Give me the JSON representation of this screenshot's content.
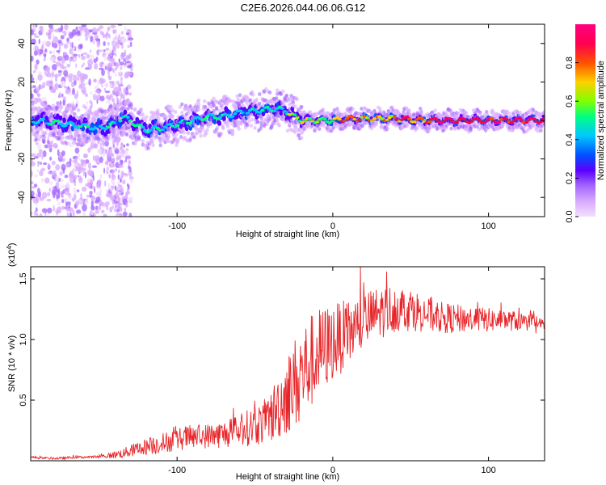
{
  "title": "C2E6.2026.044.06.06.G12",
  "chart_data": [
    {
      "type": "heatmap",
      "name": "spectrogram",
      "xlabel": "Height of straight line (km)",
      "ylabel": "Frequency (Hz)",
      "xlim": [
        -194,
        136
      ],
      "ylim": [
        -50,
        50
      ],
      "xticks": [
        -100,
        0,
        100
      ],
      "xtick_labels": [
        "-100",
        "0",
        "100"
      ],
      "yticks": [
        -40,
        -20,
        0,
        20,
        40
      ],
      "ytick_labels": [
        "-40",
        "-20",
        "0",
        "20",
        "40"
      ],
      "colorbar": {
        "label": "Normalized spectral amplitude",
        "range": [
          0,
          1
        ],
        "ticks": [
          0.0,
          0.2,
          0.4,
          0.6,
          0.8
        ],
        "tick_labels": [
          "0.0",
          "0.2",
          "0.4",
          "0.6",
          "0.8"
        ],
        "colors": [
          "#f2e0ff",
          "#d8aaff",
          "#a466ff",
          "#5a00ff",
          "#0050ff",
          "#00c8ff",
          "#00ff80",
          "#80ff00",
          "#ffd000",
          "#ff5000",
          "#ff0050",
          "#ff0080"
        ]
      },
      "ridge": {
        "x": [
          -194,
          -180,
          -170,
          -160,
          -150,
          -140,
          -135,
          -130,
          -125,
          -120,
          -110,
          -100,
          -90,
          -80,
          -70,
          -60,
          -50,
          -40,
          -35,
          -30,
          -25,
          -20,
          -10,
          0,
          10,
          20,
          40,
          60,
          80,
          100,
          120,
          136
        ],
        "y": [
          0,
          -1,
          -2,
          -3,
          -4,
          -2,
          2,
          0,
          -3,
          -5,
          -4,
          -2,
          0,
          2,
          2,
          4,
          5,
          6,
          6,
          5,
          2,
          0,
          0,
          0,
          1,
          1,
          1,
          0,
          0,
          0,
          0,
          0
        ]
      }
    },
    {
      "type": "line",
      "name": "snr",
      "xlabel": "Height of straight line (km)",
      "ylabel": "SNR (10 * v/v)",
      "y_multiplier": "(x10",
      "y_multiplier_exp": "4",
      "y_multiplier_close": ")",
      "xlim": [
        -194,
        136
      ],
      "ylim": [
        0,
        1.6
      ],
      "xticks": [
        -100,
        0,
        100
      ],
      "xtick_labels": [
        "-100",
        "0",
        "100"
      ],
      "yticks": [
        0.5,
        1.0,
        1.5
      ],
      "ytick_labels": [
        "0.5",
        "1.0",
        "1.5"
      ],
      "color": "#e8262a",
      "series": [
        {
          "name": "SNR",
          "x": [
            -194,
            -185,
            -175,
            -165,
            -155,
            -145,
            -135,
            -125,
            -115,
            -105,
            -95,
            -85,
            -75,
            -65,
            -55,
            -45,
            -40,
            -35,
            -30,
            -25,
            -20,
            -15,
            -10,
            -5,
            0,
            10,
            20,
            30,
            40,
            50,
            60,
            70,
            80,
            90,
            100,
            110,
            120,
            130,
            136
          ],
          "values": [
            0.03,
            0.02,
            0.02,
            0.03,
            0.03,
            0.04,
            0.06,
            0.1,
            0.13,
            0.16,
            0.19,
            0.2,
            0.21,
            0.23,
            0.27,
            0.31,
            0.36,
            0.45,
            0.54,
            0.63,
            0.72,
            0.8,
            0.88,
            0.93,
            0.98,
            1.05,
            1.15,
            1.22,
            1.26,
            1.25,
            1.21,
            1.18,
            1.17,
            1.17,
            1.16,
            1.16,
            1.15,
            1.13,
            1.12
          ],
          "noise": [
            0.01,
            0.01,
            0.01,
            0.01,
            0.01,
            0.02,
            0.04,
            0.06,
            0.08,
            0.09,
            0.1,
            0.1,
            0.11,
            0.12,
            0.15,
            0.18,
            0.22,
            0.28,
            0.33,
            0.38,
            0.4,
            0.4,
            0.38,
            0.35,
            0.32,
            0.28,
            0.25,
            0.22,
            0.2,
            0.18,
            0.15,
            0.13,
            0.12,
            0.11,
            0.1,
            0.09,
            0.08,
            0.06,
            0.05
          ]
        }
      ]
    }
  ]
}
